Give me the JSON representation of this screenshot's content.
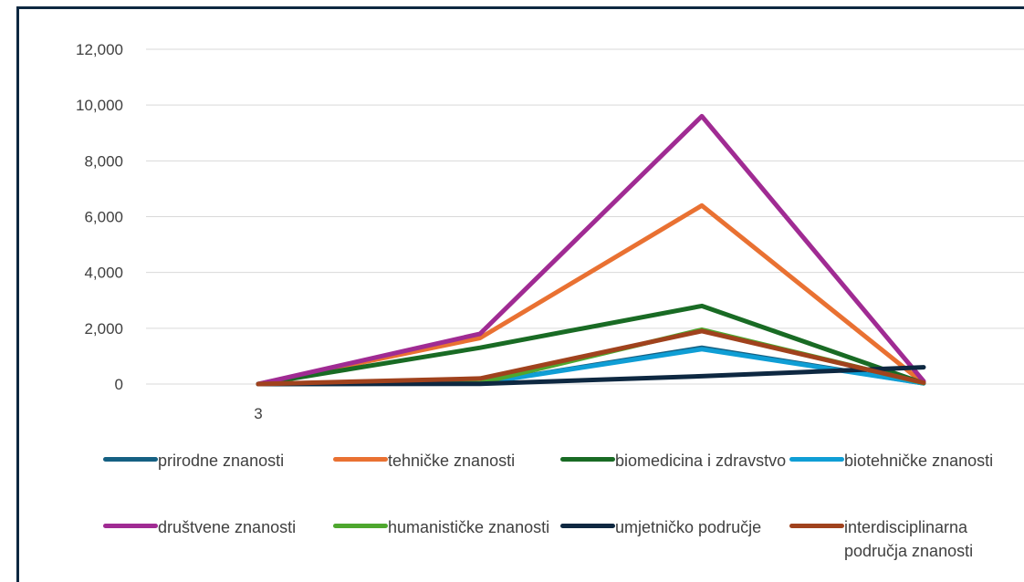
{
  "chart_data": {
    "type": "line",
    "categories": [
      "3",
      "",
      "",
      ""
    ],
    "ylim": [
      0,
      12000
    ],
    "yticks": [
      "0",
      "2,000",
      "4,000",
      "6,000",
      "8,000",
      "10,000",
      "12,000"
    ],
    "ytick_values": [
      0,
      2000,
      4000,
      6000,
      8000,
      10000,
      12000
    ],
    "grid": true,
    "legend_placement": "bottom",
    "series": [
      {
        "name": "prirodne znanosti",
        "color": "#156082",
        "values": [
          0,
          30,
          1300,
          30
        ]
      },
      {
        "name": "tehničke znanosti",
        "color": "#e97132",
        "values": [
          0,
          1650,
          6400,
          30
        ]
      },
      {
        "name": "biomedicina i zdravstvo",
        "color": "#196b24",
        "values": [
          0,
          1300,
          2800,
          30
        ]
      },
      {
        "name": "biotehničke znanosti",
        "color": "#0f9ed5",
        "values": [
          0,
          30,
          1250,
          30
        ]
      },
      {
        "name": "društvene znanosti",
        "color": "#a02b93",
        "values": [
          0,
          1800,
          9600,
          100
        ]
      },
      {
        "name": "humanističke znanosti",
        "color": "#4ea72e",
        "values": [
          0,
          40,
          1950,
          40
        ]
      },
      {
        "name": "umjetničko područje",
        "color": "#0e2841",
        "values": [
          0,
          10,
          280,
          600
        ]
      },
      {
        "name": "interdisciplinarna područja znanosti",
        "color": "#a0421d",
        "values": [
          0,
          200,
          1900,
          50
        ]
      }
    ]
  }
}
